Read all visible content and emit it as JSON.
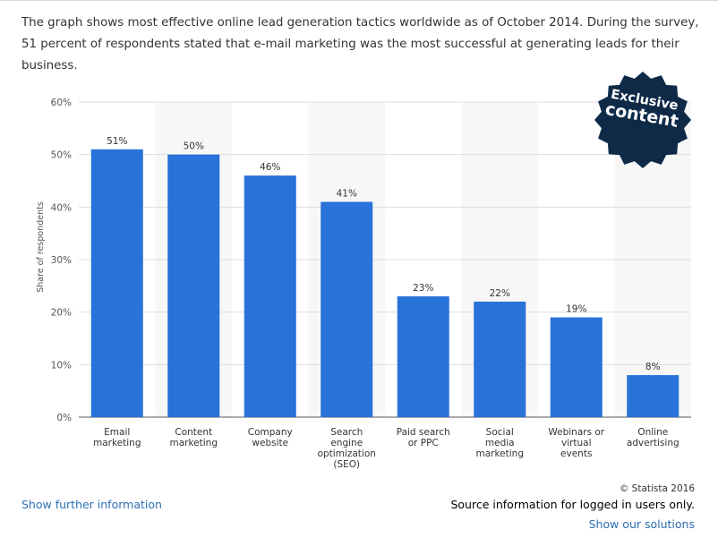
{
  "description": "The graph shows most effective online lead generation tactics worldwide as of October 2014. During the survey, 51 percent of respondents stated that e-mail marketing was the most successful at generating leads for their business.",
  "badge": {
    "line1": "Exclusive",
    "line2": "content"
  },
  "chart_data": {
    "type": "bar",
    "categories": [
      [
        "Email",
        "marketing"
      ],
      [
        "Content",
        "marketing"
      ],
      [
        "Company",
        "website"
      ],
      [
        "Search",
        "engine",
        "optimization",
        "(SEO)"
      ],
      [
        "Paid search",
        "or PPC"
      ],
      [
        "Social",
        "media",
        "marketing"
      ],
      [
        "Webinars or",
        "virtual",
        "events"
      ],
      [
        "Online",
        "advertising"
      ]
    ],
    "values": [
      51,
      50,
      46,
      41,
      23,
      22,
      19,
      8
    ],
    "value_labels": [
      "51%",
      "50%",
      "46%",
      "41%",
      "23%",
      "22%",
      "19%",
      "8%"
    ],
    "ylabel": "Share of respondents",
    "ylim": [
      0,
      60
    ],
    "yticks": [
      0,
      10,
      20,
      30,
      40,
      50,
      60
    ],
    "ytick_labels": [
      "0%",
      "10%",
      "20%",
      "30%",
      "40%",
      "50%",
      "60%"
    ],
    "grid": true,
    "bar_color": "#2872d9"
  },
  "copyright": "© Statista 2016",
  "links": {
    "further_info": "Show further information",
    "source_info": "Source information for logged in users only.",
    "solutions": "Show our solutions"
  }
}
